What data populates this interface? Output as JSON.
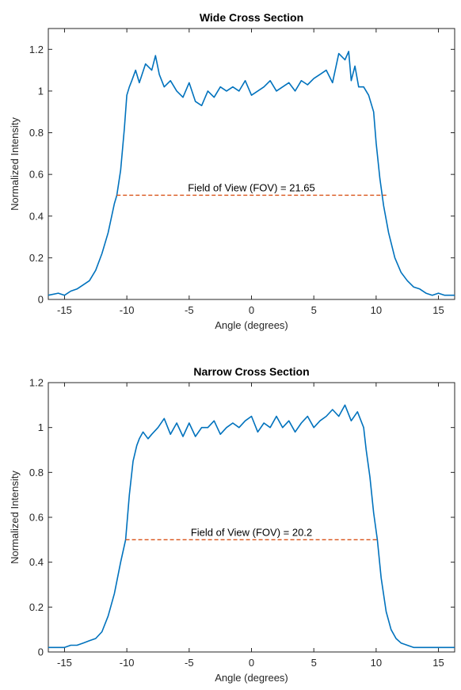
{
  "colors": {
    "series": "#0072BD",
    "fov_line": "#D95319",
    "axes": "#262626"
  },
  "chart_data": [
    {
      "type": "line",
      "title": "Wide Cross Section",
      "xlabel": "Angle (degrees)",
      "ylabel": "Normalized Intensity",
      "xlim": [
        -16.3,
        16.3
      ],
      "ylim": [
        0,
        1.3
      ],
      "xticks": [
        -15,
        -10,
        -5,
        0,
        5,
        10,
        15
      ],
      "xtick_labels": [
        "-15",
        "-10",
        "-5",
        "0",
        "5",
        "10",
        "15"
      ],
      "yticks": [
        0,
        0.2,
        0.4,
        0.6,
        0.8,
        1,
        1.2
      ],
      "ytick_labels": [
        "0",
        "0.2",
        "0.4",
        "0.6",
        "0.8",
        "1",
        "1.2"
      ],
      "grid": false,
      "annotation": {
        "text": "Field of View (FOV) = 21.65",
        "x": 0,
        "y": 0.5
      },
      "fov_line": {
        "x": [
          -10.82,
          10.82
        ],
        "y": 0.5
      },
      "series": [
        {
          "x": [
            -16.3,
            -15.5,
            -15,
            -14.5,
            -14,
            -13.5,
            -13,
            -12.5,
            -12,
            -11.5,
            -11,
            -10.8,
            -10.5,
            -10.2,
            -10,
            -9.8,
            -9.6,
            -9.3,
            -9,
            -8.5,
            -8,
            -7.7,
            -7.4,
            -7,
            -6.5,
            -6,
            -5.5,
            -5,
            -4.5,
            -4,
            -3.5,
            -3,
            -2.5,
            -2,
            -1.5,
            -1,
            -0.5,
            0,
            0.5,
            1,
            1.5,
            2,
            2.5,
            3,
            3.5,
            4,
            4.5,
            5,
            5.5,
            6,
            6.5,
            7,
            7.5,
            7.8,
            8,
            8.3,
            8.6,
            9,
            9.4,
            9.8,
            10,
            10.3,
            10.6,
            11,
            11.5,
            12,
            12.5,
            13,
            13.5,
            14,
            14.5,
            15,
            15.5,
            16.3
          ],
          "y": [
            0.02,
            0.03,
            0.02,
            0.04,
            0.05,
            0.07,
            0.09,
            0.14,
            0.22,
            0.32,
            0.46,
            0.5,
            0.62,
            0.82,
            0.98,
            1.02,
            1.05,
            1.1,
            1.04,
            1.13,
            1.1,
            1.17,
            1.08,
            1.02,
            1.05,
            1.0,
            0.97,
            1.04,
            0.95,
            0.93,
            1.0,
            0.97,
            1.02,
            1.0,
            1.02,
            1.0,
            1.05,
            0.98,
            1.0,
            1.02,
            1.05,
            1.0,
            1.02,
            1.04,
            1.0,
            1.05,
            1.03,
            1.06,
            1.08,
            1.1,
            1.04,
            1.18,
            1.15,
            1.19,
            1.05,
            1.12,
            1.02,
            1.02,
            0.98,
            0.9,
            0.75,
            0.58,
            0.45,
            0.32,
            0.2,
            0.13,
            0.09,
            0.06,
            0.05,
            0.03,
            0.02,
            0.03,
            0.02,
            0.02
          ]
        }
      ]
    },
    {
      "type": "line",
      "title": "Narrow Cross Section",
      "xlabel": "Angle (degrees)",
      "ylabel": "Normalized Intensity",
      "xlim": [
        -16.3,
        16.3
      ],
      "ylim": [
        0,
        1.2
      ],
      "xticks": [
        -15,
        -10,
        -5,
        0,
        5,
        10,
        15
      ],
      "xtick_labels": [
        "-15",
        "-10",
        "-5",
        "0",
        "5",
        "10",
        "15"
      ],
      "yticks": [
        0,
        0.2,
        0.4,
        0.6,
        0.8,
        1,
        1.2
      ],
      "ytick_labels": [
        "0",
        "0.2",
        "0.4",
        "0.6",
        "0.8",
        "1",
        "1.2"
      ],
      "grid": false,
      "annotation": {
        "text": "Field of View (FOV) = 20.2",
        "x": 0,
        "y": 0.5
      },
      "fov_line": {
        "x": [
          -10.1,
          10.1
        ],
        "y": 0.5
      },
      "series": [
        {
          "x": [
            -16.3,
            -15.5,
            -15,
            -14.5,
            -14,
            -13.5,
            -13,
            -12.5,
            -12,
            -11.5,
            -11,
            -10.5,
            -10.1,
            -9.8,
            -9.5,
            -9.2,
            -9,
            -8.7,
            -8.3,
            -8,
            -7.5,
            -7,
            -6.5,
            -6,
            -5.5,
            -5,
            -4.5,
            -4,
            -3.5,
            -3,
            -2.5,
            -2,
            -1.5,
            -1,
            -0.5,
            0,
            0.5,
            1,
            1.5,
            2,
            2.5,
            3,
            3.5,
            4,
            4.5,
            5,
            5.5,
            6,
            6.5,
            7,
            7.5,
            8,
            8.5,
            9,
            9.2,
            9.5,
            9.8,
            10.1,
            10.4,
            10.8,
            11.2,
            11.6,
            12,
            12.5,
            13,
            13.5,
            14,
            14.5,
            15,
            15.5,
            16.3
          ],
          "y": [
            0.02,
            0.02,
            0.02,
            0.03,
            0.03,
            0.04,
            0.05,
            0.06,
            0.09,
            0.16,
            0.26,
            0.4,
            0.5,
            0.7,
            0.85,
            0.92,
            0.95,
            0.98,
            0.95,
            0.97,
            1.0,
            1.04,
            0.97,
            1.02,
            0.96,
            1.02,
            0.96,
            1.0,
            1.0,
            1.03,
            0.97,
            1.0,
            1.02,
            1.0,
            1.03,
            1.05,
            0.98,
            1.02,
            1.0,
            1.05,
            1.0,
            1.03,
            0.98,
            1.02,
            1.05,
            1.0,
            1.03,
            1.05,
            1.08,
            1.05,
            1.1,
            1.03,
            1.07,
            1.0,
            0.9,
            0.78,
            0.62,
            0.5,
            0.33,
            0.18,
            0.1,
            0.06,
            0.04,
            0.03,
            0.02,
            0.02,
            0.02,
            0.02,
            0.02,
            0.02,
            0.02
          ]
        }
      ]
    }
  ]
}
